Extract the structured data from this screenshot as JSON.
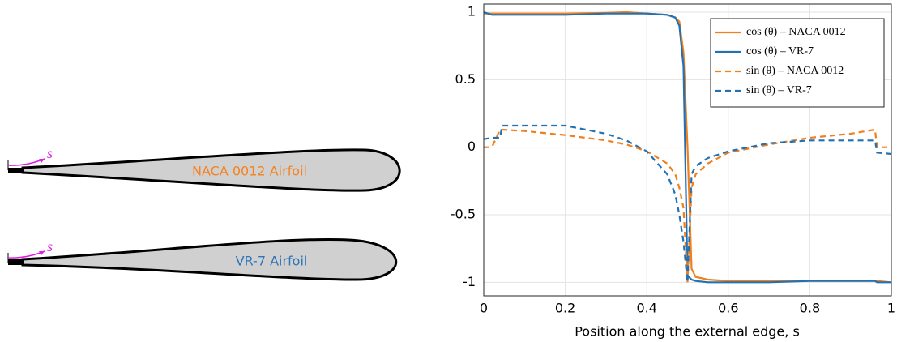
{
  "airfoils": [
    {
      "name": "NACA 0012 Airfoil",
      "arc": "s",
      "color": "#f5821f"
    },
    {
      "name": "VR-7 Airfoil",
      "arc": "s",
      "color": "#2e75b6"
    }
  ],
  "chart_data": {
    "type": "line",
    "x": [
      0,
      0.02,
      0.04,
      0.045,
      0.1,
      0.2,
      0.3,
      0.35,
      0.4,
      0.45,
      0.47,
      0.48,
      0.49,
      0.5,
      0.51,
      0.52,
      0.55,
      0.6,
      0.7,
      0.8,
      0.9,
      0.96,
      0.965,
      1
    ],
    "series": [
      {
        "name": "cos (θ) – NACA 0012",
        "color": "#f07f1c",
        "dash": false,
        "values": [
          0.99,
          0.99,
          0.99,
          0.99,
          0.99,
          0.99,
          0.995,
          1.0,
          0.99,
          0.98,
          0.96,
          0.93,
          0.7,
          0,
          -0.9,
          -0.96,
          -0.98,
          -0.99,
          -0.99,
          -0.99,
          -0.99,
          -0.99,
          -0.99,
          -1
        ]
      },
      {
        "name": "cos (θ) – VR-7",
        "color": "#2271b3",
        "dash": false,
        "values": [
          1,
          0.98,
          0.98,
          0.98,
          0.98,
          0.98,
          0.99,
          0.99,
          0.99,
          0.98,
          0.96,
          0.9,
          0.6,
          -0.95,
          -0.98,
          -0.99,
          -1,
          -1,
          -1,
          -0.99,
          -0.99,
          -0.99,
          -1,
          -1
        ]
      },
      {
        "name": "sin (θ) – NACA 0012",
        "color": "#f07f1c",
        "dash": true,
        "values": [
          0,
          0,
          0.13,
          0.13,
          0.12,
          0.09,
          0.05,
          0.02,
          -0.03,
          -0.12,
          -0.2,
          -0.3,
          -0.45,
          -1,
          -0.3,
          -0.2,
          -0.12,
          -0.04,
          0.02,
          0.07,
          0.1,
          0.13,
          0,
          0
        ]
      },
      {
        "name": "sin (θ) – VR-7",
        "color": "#2271b3",
        "dash": true,
        "values": [
          0.06,
          0.07,
          0.07,
          0.16,
          0.16,
          0.16,
          0.1,
          0.05,
          -0.03,
          -0.2,
          -0.35,
          -0.5,
          -0.7,
          -1,
          -0.2,
          -0.14,
          -0.08,
          -0.03,
          0.03,
          0.05,
          0.05,
          0.05,
          -0.04,
          -0.05
        ]
      }
    ],
    "xlabel": "Position along the external edge, s",
    "xlim": [
      0,
      1
    ],
    "xticks": [
      0,
      0.2,
      0.4,
      0.6,
      0.8,
      1
    ],
    "ylim": [
      -1.1,
      1.06
    ],
    "yticks": [
      -1,
      -0.5,
      0,
      0.5,
      1
    ],
    "grid": true,
    "legend": "top-right"
  }
}
